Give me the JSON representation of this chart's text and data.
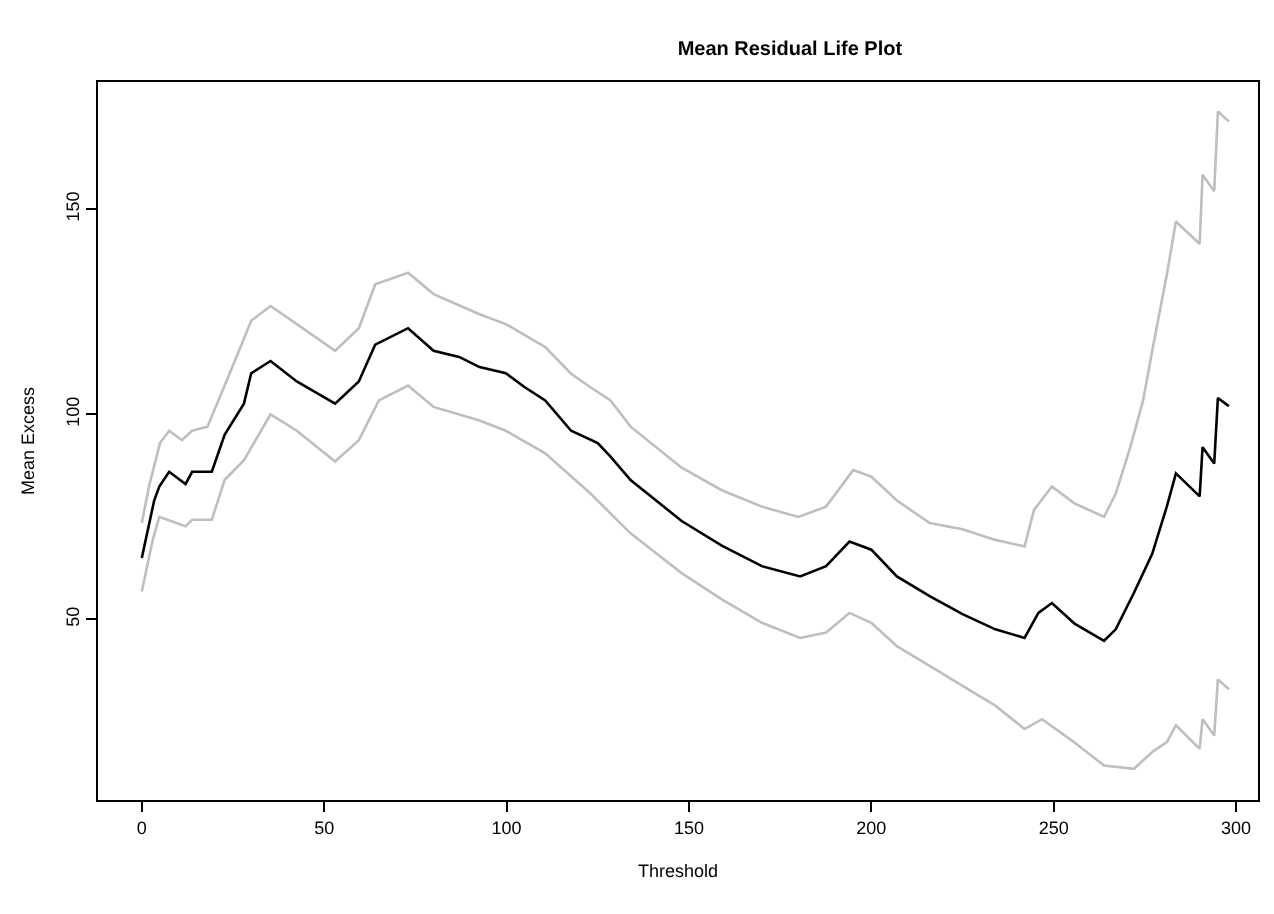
{
  "chart_data": {
    "type": "line",
    "title": "Mean Residual Life Plot",
    "xlabel": "Threshold",
    "ylabel": "Mean Excess",
    "xlim": [
      -12,
      306
    ],
    "xticks": [
      0,
      50,
      100,
      150,
      200,
      250,
      300
    ],
    "ylim": [
      6,
      181
    ],
    "yticks": [
      50,
      100,
      150
    ],
    "grid": false,
    "marker": "none",
    "line_style": "solid",
    "series": [
      {
        "color": "#bebebe",
        "x": [
          0,
          2,
          5,
          7.5,
          11,
          13.8,
          18,
          21,
          26.3,
          30,
          35.3,
          42.5,
          53,
          59.5,
          64,
          73,
          80,
          92.6,
          99.8,
          110.6,
          117.7,
          123,
          128.5,
          134,
          148,
          159,
          170,
          180,
          187.6,
          195,
          200,
          207,
          216,
          225,
          234,
          242,
          244.6,
          249.5,
          255.7,
          263.8,
          267,
          271,
          274.5,
          277,
          281,
          283.5,
          290,
          290.8,
          294,
          295,
          298
        ],
        "values": [
          73.5,
          82.5,
          93,
          96,
          93.7,
          96,
          97,
          103.4,
          114.7,
          122.8,
          126.4,
          122,
          115.5,
          121,
          131.7,
          134.5,
          129.3,
          124.4,
          122,
          116.4,
          109.9,
          106.6,
          103.4,
          97,
          87,
          81.5,
          77.5,
          75,
          77.5,
          86.4,
          84.8,
          79,
          73.5,
          72,
          69.4,
          67.8,
          76.7,
          82.4,
          78.3,
          75,
          80.7,
          92,
          103.4,
          115.5,
          134,
          147,
          141.5,
          158.4,
          154.4,
          173.8,
          171.4
        ]
      },
      {
        "color": "#bebebe",
        "x": [
          0,
          3,
          4.8,
          12,
          13.8,
          19.2,
          22.7,
          28,
          35.3,
          42.5,
          53,
          59.5,
          65,
          73,
          80,
          92.6,
          99.8,
          110.6,
          123,
          134,
          148,
          159,
          170,
          180.5,
          187.6,
          194,
          200,
          207,
          216,
          225,
          234,
          242,
          246.8,
          255.7,
          263.8,
          272,
          277,
          281,
          283.5,
          290,
          290.8,
          294,
          295,
          298
        ],
        "values": [
          56.8,
          69.4,
          75,
          72.7,
          74.3,
          74.3,
          84,
          88.8,
          100,
          96,
          88.5,
          93.7,
          103.4,
          107,
          101.8,
          98.5,
          96,
          90.5,
          80.7,
          71,
          61.3,
          54.9,
          49.2,
          45.5,
          46.8,
          51.6,
          49.2,
          43.5,
          38.7,
          33.8,
          29,
          23.3,
          25.7,
          20,
          14.4,
          13.6,
          17.7,
          20.1,
          24.2,
          18.5,
          25.7,
          21.7,
          35.4,
          33
        ]
      },
      {
        "color": "#000000",
        "x": [
          0,
          3.4,
          4.8,
          7.5,
          12,
          13.8,
          19.2,
          22.7,
          28,
          30,
          35.3,
          42.5,
          53,
          59.5,
          64,
          73,
          80,
          87,
          92.6,
          99.8,
          105,
          110.6,
          117.7,
          125,
          128.5,
          134,
          148,
          159,
          170,
          180.5,
          187.6,
          194,
          200,
          207,
          216,
          225,
          234,
          242,
          245.8,
          249.5,
          255.7,
          263.8,
          267,
          272,
          277,
          281,
          283.5,
          290,
          290.8,
          294,
          295,
          298
        ],
        "values": [
          65,
          79,
          82.4,
          86,
          83,
          86,
          86,
          95,
          102.6,
          110,
          113,
          108,
          102.6,
          108,
          117,
          121,
          115.5,
          114,
          111.5,
          110,
          106.6,
          103.4,
          96,
          93,
          89.7,
          84,
          74,
          68,
          63,
          60.5,
          63,
          69,
          67,
          60.5,
          55.7,
          51.3,
          47.6,
          45.5,
          51.6,
          54,
          49,
          44.8,
          47.6,
          56.5,
          66,
          77.5,
          85.6,
          80,
          92,
          88,
          104,
          102
        ]
      }
    ]
  }
}
